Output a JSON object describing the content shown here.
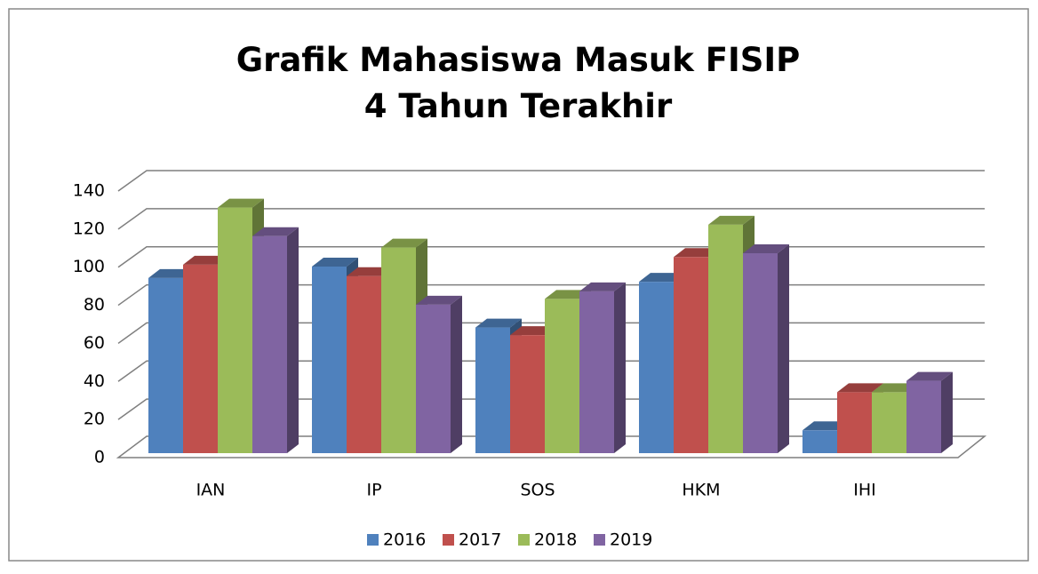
{
  "chart_data": {
    "type": "bar3d",
    "title": [
      "Grafik Mahasiswa Masuk FISIP",
      "4 Tahun Terakhir"
    ],
    "categories": [
      "IAN",
      "IP",
      "SOS",
      "HKM",
      "IHI"
    ],
    "series": [
      {
        "name": "2016",
        "color": "#4f81bd",
        "values": [
          92,
          98,
          66,
          90,
          12
        ]
      },
      {
        "name": "2017",
        "color": "#c0504d",
        "values": [
          99,
          93,
          62,
          103,
          32
        ]
      },
      {
        "name": "2018",
        "color": "#9bbb59",
        "values": [
          129,
          108,
          81,
          120,
          32
        ]
      },
      {
        "name": "2019",
        "color": "#8064a2",
        "values": [
          114,
          78,
          85,
          105,
          38
        ]
      }
    ],
    "ylim": [
      0,
      140
    ],
    "yticks": [
      0,
      20,
      40,
      60,
      80,
      100,
      120,
      140
    ],
    "grid": true,
    "legend": "bottom"
  }
}
